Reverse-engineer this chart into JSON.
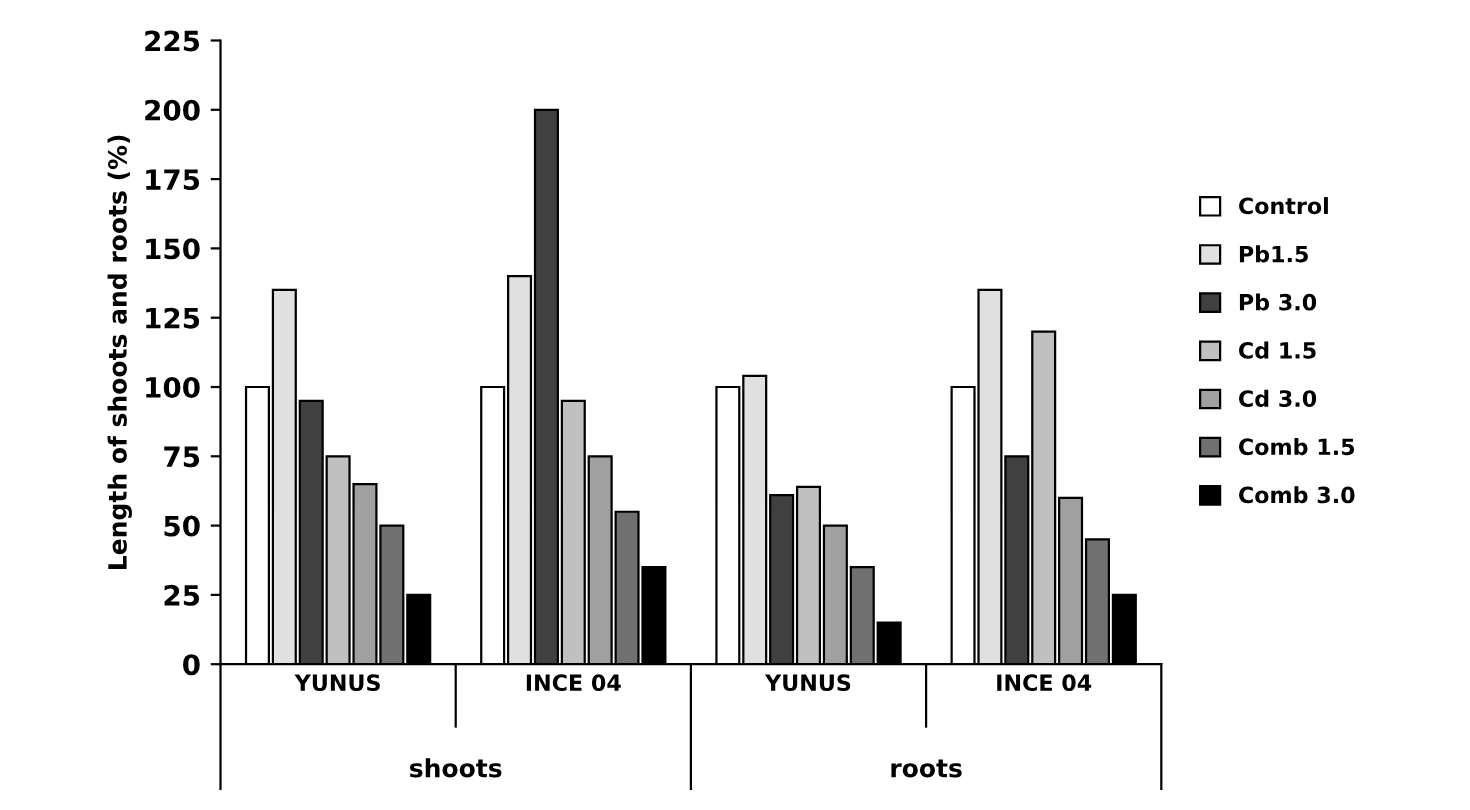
{
  "chart_data": {
    "type": "bar",
    "ylabel": "Length of shoots and roots (%)",
    "categories": [
      "YUNUS",
      "INCE 04",
      "YUNUS",
      "INCE 04"
    ],
    "annotations": [
      "shoots",
      "roots"
    ],
    "series": [
      {
        "name": "Control",
        "color": "#ffffff",
        "values": [
          100,
          100,
          100,
          100
        ]
      },
      {
        "name": "Pb1.5",
        "color": "#e0e0e0",
        "values": [
          135,
          140,
          104,
          135
        ]
      },
      {
        "name": "Pb 3.0",
        "color": "#404040",
        "values": [
          95,
          200,
          61,
          75
        ]
      },
      {
        "name": "Cd 1.5",
        "color": "#c0c0c0",
        "values": [
          75,
          95,
          64,
          120
        ]
      },
      {
        "name": "Cd 3.0",
        "color": "#a0a0a0",
        "values": [
          65,
          75,
          50,
          60
        ]
      },
      {
        "name": "Comb 1.5",
        "color": "#707070",
        "values": [
          50,
          55,
          35,
          45
        ]
      },
      {
        "name": "Comb 3.0",
        "color": "#000000",
        "values": [
          25,
          35,
          15,
          25
        ]
      }
    ],
    "ylim": [
      0,
      225
    ],
    "yticks": [
      0,
      25,
      50,
      75,
      100,
      125,
      150,
      175,
      200,
      225
    ],
    "grid": false,
    "legend": "right"
  }
}
